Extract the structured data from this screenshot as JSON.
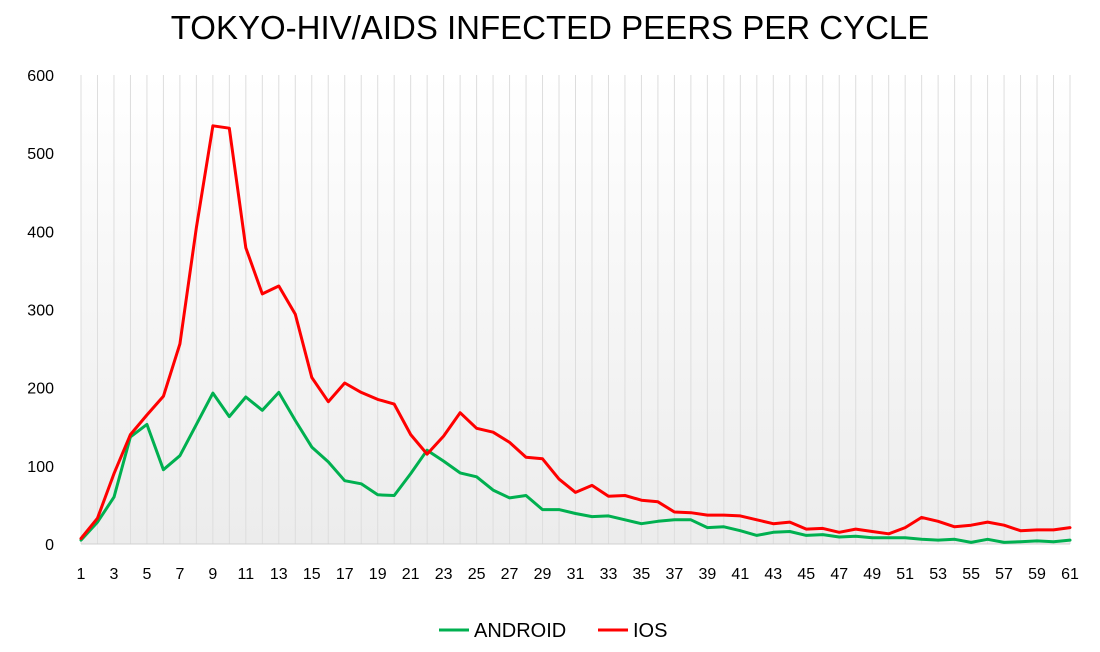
{
  "chart_data": {
    "type": "line",
    "title": "TOKYO-HIV/AIDS INFECTED PEERS PER CYCLE",
    "xlabel": "",
    "ylabel": "",
    "ylim": [
      0,
      600
    ],
    "yticks": [
      0,
      100,
      200,
      300,
      400,
      500,
      600
    ],
    "xticks": [
      1,
      3,
      5,
      7,
      9,
      11,
      13,
      15,
      17,
      19,
      21,
      23,
      25,
      27,
      29,
      31,
      33,
      35,
      37,
      39,
      41,
      43,
      45,
      47,
      49,
      51,
      53,
      55,
      57,
      59,
      61
    ],
    "x": [
      1,
      2,
      3,
      4,
      5,
      6,
      7,
      8,
      9,
      10,
      11,
      12,
      13,
      14,
      15,
      16,
      17,
      18,
      19,
      20,
      21,
      22,
      23,
      24,
      25,
      26,
      27,
      28,
      29,
      30,
      31,
      32,
      33,
      34,
      35,
      36,
      37,
      38,
      39,
      40,
      41,
      42,
      43,
      44,
      45,
      46,
      47,
      48,
      49,
      50,
      51,
      52,
      53,
      54,
      55,
      56,
      57,
      58,
      59,
      60,
      61
    ],
    "grid": "vertical",
    "legend_position": "bottom",
    "series": [
      {
        "name": "ANDROID",
        "color": "#00b050",
        "values": [
          5,
          28,
          60,
          137,
          153,
          95,
          113,
          153,
          193,
          163,
          188,
          171,
          194,
          158,
          124,
          105,
          81,
          77,
          63,
          62,
          90,
          120,
          106,
          91,
          86,
          69,
          59,
          62,
          44,
          44,
          39,
          35,
          36,
          31,
          26,
          29,
          31,
          31,
          21,
          22,
          17,
          11,
          15,
          16,
          11,
          12,
          9,
          10,
          8,
          8,
          8,
          6,
          5,
          6,
          2,
          6,
          2,
          3,
          4,
          3,
          5
        ]
      },
      {
        "name": "IOS",
        "color": "#ff0000",
        "values": [
          7,
          33,
          90,
          140,
          165,
          189,
          256,
          405,
          535,
          532,
          379,
          320,
          330,
          294,
          213,
          182,
          206,
          194,
          185,
          179,
          140,
          115,
          138,
          168,
          148,
          143,
          130,
          111,
          109,
          83,
          66,
          75,
          61,
          62,
          56,
          54,
          41,
          40,
          37,
          37,
          36,
          31,
          26,
          28,
          19,
          20,
          15,
          19,
          16,
          13,
          21,
          34,
          29,
          22,
          24,
          28,
          24,
          17,
          18,
          18,
          21
        ]
      }
    ]
  }
}
